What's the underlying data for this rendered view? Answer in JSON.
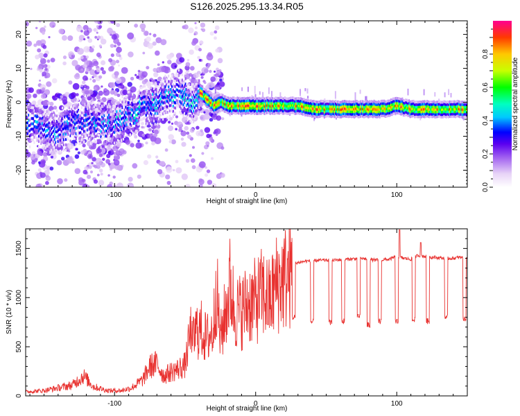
{
  "chart_data": [
    {
      "type": "heatmap",
      "title": "S126.2025.295.13.34.R05",
      "xlabel": "Height of straight line (km)",
      "ylabel": "Frequency (Hz)",
      "xlim": [
        -163,
        150
      ],
      "ylim": [
        -25,
        24
      ],
      "xticks": [
        -100,
        0,
        100
      ],
      "yticks": [
        -20,
        -10,
        0,
        10,
        20
      ],
      "colorbar": {
        "label": "Normalized spectral amplitude",
        "range": [
          0,
          1
        ],
        "ticks": [
          0.0,
          0.2,
          0.4,
          0.6,
          0.8
        ]
      },
      "ridge": {
        "description": "dominant frequency track",
        "x": [
          -163,
          -150,
          -140,
          -130,
          -120,
          -110,
          -100,
          -90,
          -80,
          -70,
          -62,
          -55,
          -50,
          -45,
          -40,
          -35,
          -30,
          -25,
          -20,
          -10,
          0,
          10,
          20,
          30,
          40,
          50,
          60,
          70,
          80,
          90,
          100,
          110,
          120,
          130,
          150
        ],
        "y": [
          -7,
          -8,
          -9,
          -6,
          -5,
          -7,
          -6,
          -3,
          -2,
          0,
          2,
          3,
          2,
          0,
          3,
          1,
          -1,
          0,
          -1,
          -1,
          -1,
          -1,
          -1,
          -1,
          -2,
          -2,
          -2,
          -2,
          -2,
          -2,
          -1,
          -2,
          -2,
          -2,
          -2
        ]
      }
    },
    {
      "type": "line",
      "xlabel": "Height of straight line (km)",
      "ylabel": "SNR (10 * v/v)",
      "xlim": [
        -163,
        150
      ],
      "ylim": [
        0,
        1700
      ],
      "xticks": [
        -100,
        0,
        100
      ],
      "yticks": [
        0,
        500,
        1000,
        1500
      ],
      "series": [
        {
          "name": "SNR",
          "color": "#e8312f",
          "x": [
            -163,
            -150,
            -140,
            -130,
            -122,
            -115,
            -105,
            -95,
            -88,
            -80,
            -75,
            -70,
            -65,
            -60,
            -55,
            -50,
            -45,
            -42,
            -38,
            -35,
            -30,
            -28,
            -25,
            -20,
            -18,
            -15,
            -10,
            -5,
            0,
            5,
            10,
            15,
            20,
            25,
            28,
            35,
            45,
            55,
            65,
            75,
            85,
            95,
            100,
            105,
            110,
            115,
            125,
            135,
            140,
            145,
            150
          ],
          "y": [
            30,
            40,
            60,
            80,
            150,
            70,
            40,
            40,
            60,
            120,
            220,
            240,
            150,
            180,
            200,
            230,
            550,
            700,
            700,
            600,
            700,
            1200,
            600,
            1000,
            1200,
            900,
            900,
            1000,
            1000,
            1100,
            1000,
            1200,
            1250,
            1300,
            1350,
            1370,
            1380,
            1380,
            1390,
            1400,
            1380,
            1390,
            1420,
            1400,
            1390,
            1430,
            1410,
            1400,
            1400,
            1410,
            1400
          ]
        }
      ],
      "dropouts": {
        "description": "periodic drops to lower SNR",
        "x": [
          27,
          40,
          53,
          62,
          73,
          80,
          88,
          100,
          112,
          122,
          135,
          148
        ],
        "y": [
          800,
          750,
          750,
          760,
          800,
          720,
          760,
          750,
          770,
          760,
          800,
          790
        ]
      }
    }
  ]
}
